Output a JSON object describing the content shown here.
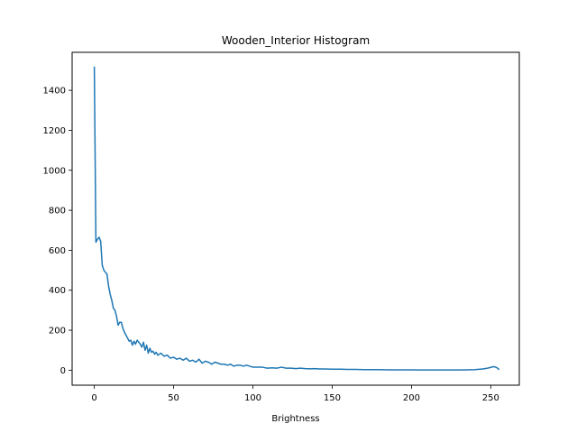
{
  "chart_data": {
    "type": "line",
    "title": "Wooden_Interior Histogram",
    "xlabel": "Brightness",
    "ylabel": "",
    "xlim": [
      -14,
      268
    ],
    "ylim": [
      -75,
      1590
    ],
    "xticks": [
      0,
      50,
      100,
      150,
      200,
      250
    ],
    "yticks": [
      0,
      200,
      400,
      600,
      800,
      1000,
      1200,
      1400
    ],
    "grid": false,
    "series": [
      {
        "color": "#1f77b4",
        "x": [
          0,
          1,
          2,
          3,
          4,
          5,
          6,
          7,
          8,
          9,
          10,
          11,
          12,
          13,
          14,
          15,
          16,
          17,
          18,
          19,
          20,
          21,
          22,
          23,
          24,
          25,
          26,
          27,
          28,
          29,
          30,
          31,
          32,
          33,
          34,
          35,
          36,
          37,
          38,
          39,
          40,
          42,
          44,
          46,
          48,
          50,
          52,
          54,
          56,
          58,
          60,
          62,
          64,
          66,
          68,
          70,
          72,
          74,
          76,
          78,
          80,
          82,
          84,
          86,
          88,
          90,
          92,
          94,
          96,
          98,
          100,
          103,
          106,
          109,
          112,
          115,
          118,
          121,
          124,
          127,
          130,
          133,
          136,
          139,
          142,
          145,
          150,
          155,
          160,
          165,
          170,
          175,
          180,
          185,
          190,
          195,
          200,
          205,
          210,
          215,
          220,
          225,
          230,
          235,
          240,
          245,
          248,
          250,
          252,
          254,
          255
        ],
        "y": [
          1515,
          640,
          655,
          665,
          645,
          525,
          500,
          490,
          480,
          420,
          380,
          350,
          310,
          300,
          270,
          225,
          240,
          240,
          210,
          190,
          175,
          160,
          145,
          150,
          125,
          145,
          130,
          150,
          140,
          130,
          115,
          140,
          100,
          125,
          85,
          110,
          90,
          95,
          80,
          90,
          75,
          85,
          70,
          75,
          60,
          65,
          55,
          60,
          50,
          60,
          45,
          50,
          40,
          55,
          35,
          45,
          40,
          30,
          40,
          35,
          30,
          30,
          25,
          30,
          20,
          25,
          25,
          20,
          25,
          20,
          15,
          15,
          15,
          10,
          12,
          10,
          15,
          10,
          10,
          8,
          10,
          8,
          7,
          8,
          6,
          6,
          5,
          5,
          4,
          4,
          3,
          3,
          3,
          2,
          2,
          2,
          2,
          1,
          1,
          1,
          1,
          1,
          1,
          2,
          3,
          6,
          10,
          14,
          18,
          12,
          5
        ]
      }
    ]
  }
}
